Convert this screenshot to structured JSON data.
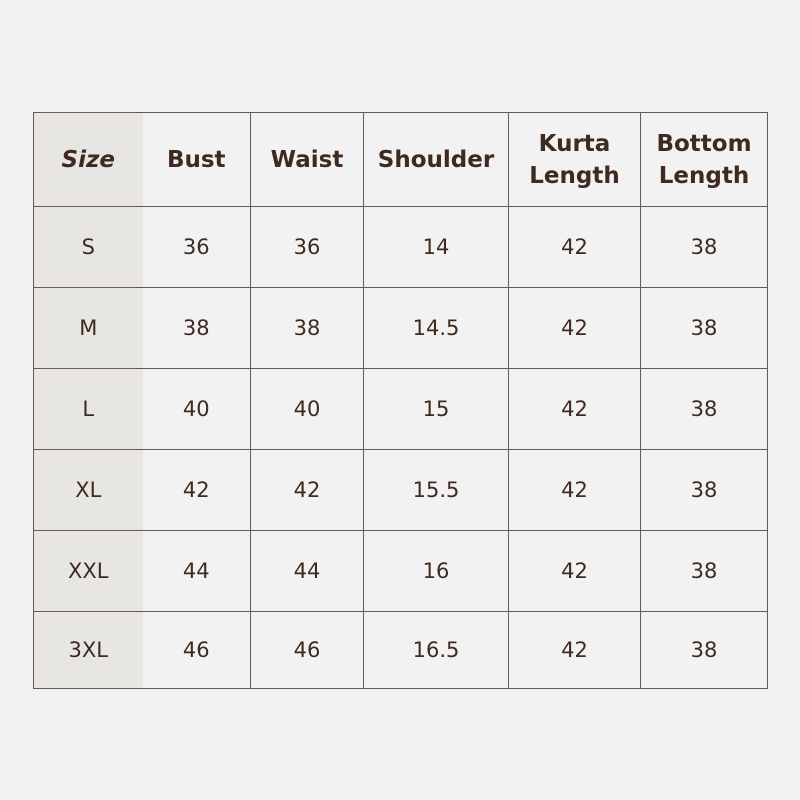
{
  "headers": [
    "Size",
    "Bust",
    "Waist",
    "Shoulder",
    "Kurta Length",
    "Bottom Length"
  ],
  "rows": [
    [
      "S",
      "36",
      "36",
      "14",
      "42",
      "38"
    ],
    [
      "M",
      "38",
      "38",
      "14.5",
      "42",
      "38"
    ],
    [
      "L",
      "40",
      "40",
      "15",
      "42",
      "38"
    ],
    [
      "XL",
      "42",
      "42",
      "15.5",
      "42",
      "38"
    ],
    [
      "XXL",
      "44",
      "44",
      "16",
      "42",
      "38"
    ],
    [
      "3XL",
      "46",
      "46",
      "16.5",
      "42",
      "38"
    ]
  ],
  "colors": {
    "background": "#f2f2f2",
    "size_column": "#e8e6e2",
    "text": "#3d2a20",
    "border": "#6a5a52"
  }
}
